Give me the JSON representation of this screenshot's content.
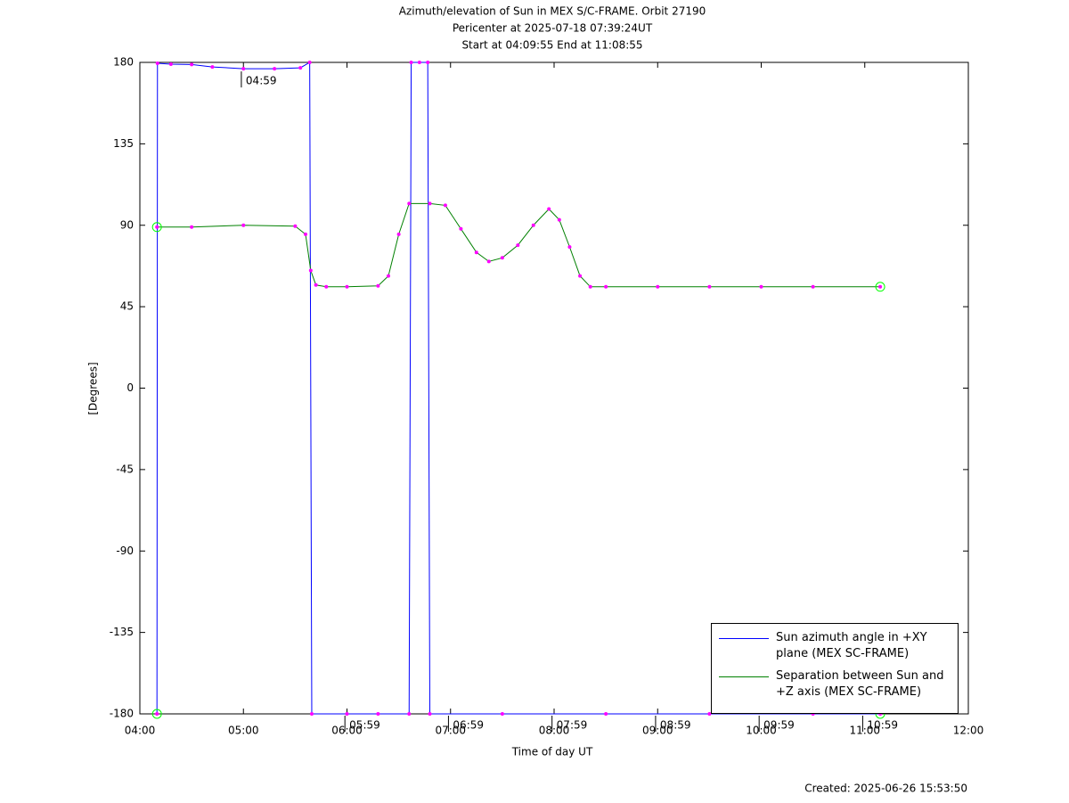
{
  "chart_data": {
    "type": "line",
    "title": "Azimuth/elevation of Sun in MEX S/C-FRAME.  Orbit 27190",
    "subtitle": [
      "Pericenter at 2025-07-18 07:39:24UT",
      "Start at 04:09:55 End at 11:08:55"
    ],
    "x_label": "Time of day UT",
    "y_label": "[Degrees]",
    "footer": "Created: 2025-06-26 15:53:50",
    "xlim": [
      4,
      12
    ],
    "xticks": [
      {
        "value": 4,
        "label": "04:00"
      },
      {
        "value": 5,
        "label": "05:00"
      },
      {
        "value": 6,
        "label": "06:00"
      },
      {
        "value": 7,
        "label": "07:00"
      },
      {
        "value": 8,
        "label": "08:00"
      },
      {
        "value": 9,
        "label": "09:00"
      },
      {
        "value": 10,
        "label": "10:00"
      },
      {
        "value": 11,
        "label": "11:00"
      },
      {
        "value": 12,
        "label": "12:00"
      }
    ],
    "ylim": [
      -180,
      180
    ],
    "yticks": [
      -180,
      -135,
      -90,
      -45,
      0,
      45,
      90,
      135,
      180
    ],
    "legend": "lower right",
    "marker_color": "#ff00ff",
    "series": [
      {
        "name": "Sun azimuth angle in +XY plane (MEX SC-FRAME)",
        "color": "#0000ff",
        "x": [
          4.165,
          4.17,
          4.3,
          4.5,
          4.7,
          5.0,
          5.3,
          5.55,
          5.64,
          5.66,
          6.0,
          6.3,
          6.6,
          6.62,
          6.7,
          6.78,
          6.8,
          7.5,
          8.5,
          9.5,
          10.5,
          11.149
        ],
        "values": [
          -180,
          179.5,
          179,
          178.8,
          177.5,
          176.5,
          176.5,
          177,
          180,
          -180,
          -180,
          -180,
          -180,
          180,
          180,
          180,
          -180,
          -180,
          -180,
          -180,
          -180,
          -180
        ]
      },
      {
        "name": "Separation between Sun and +Z axis (MEX SC-FRAME)",
        "color": "#008000",
        "x": [
          4.165,
          4.5,
          5.0,
          5.5,
          5.6,
          5.65,
          5.7,
          5.8,
          6.0,
          6.3,
          6.4,
          6.5,
          6.6,
          6.8,
          6.95,
          7.1,
          7.25,
          7.37,
          7.5,
          7.65,
          7.8,
          7.95,
          8.05,
          8.15,
          8.25,
          8.35,
          8.5,
          9.0,
          9.5,
          10.0,
          10.5,
          11.149
        ],
        "values": [
          89,
          89,
          90,
          89.5,
          85,
          65,
          57,
          56,
          56,
          56.5,
          62,
          85,
          102,
          102,
          101,
          88,
          75,
          70,
          72,
          79,
          90,
          99,
          93,
          78,
          62,
          56,
          56,
          56,
          56,
          56,
          56,
          56
        ]
      }
    ],
    "annotations": [
      {
        "text": "04:59",
        "x": 4.98,
        "y": 176
      },
      {
        "text": "05:59",
        "x": 5.98,
        "y": -180
      },
      {
        "text": "06:59",
        "x": 6.98,
        "y": -180
      },
      {
        "text": "07:59",
        "x": 7.98,
        "y": -180
      },
      {
        "text": "08:59",
        "x": 8.98,
        "y": -180
      },
      {
        "text": "09:59",
        "x": 9.98,
        "y": -180
      },
      {
        "text": "10:59",
        "x": 10.98,
        "y": -180
      }
    ]
  }
}
